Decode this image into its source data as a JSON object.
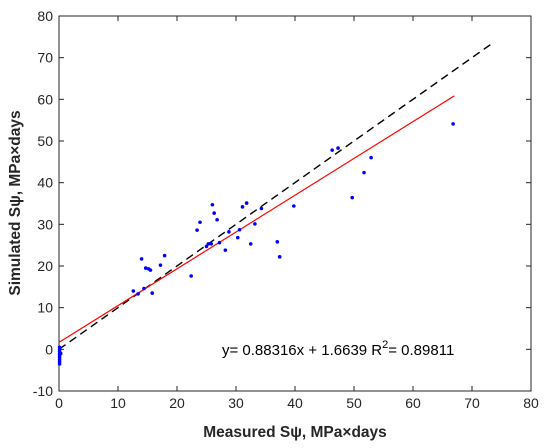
{
  "chart_data": {
    "type": "scatter",
    "title": "",
    "xlabel": "Measured Sψ, MPa×days",
    "ylabel": "Simulated Sψ, MPa×days",
    "xlim": [
      0,
      80
    ],
    "ylim": [
      -10,
      80
    ],
    "x_ticks": [
      0,
      10,
      20,
      30,
      40,
      50,
      60,
      70,
      80
    ],
    "y_ticks": [
      -10,
      0,
      10,
      20,
      30,
      40,
      50,
      60,
      70,
      80
    ],
    "grid": false,
    "legend": "none",
    "points": [
      {
        "x": 0.1,
        "y": 0.5
      },
      {
        "x": 0.1,
        "y": 0.0
      },
      {
        "x": 0.1,
        "y": -0.5
      },
      {
        "x": 0.1,
        "y": -1.0
      },
      {
        "x": 0.1,
        "y": -1.5
      },
      {
        "x": 0.1,
        "y": -2.0
      },
      {
        "x": 0.1,
        "y": -2.5
      },
      {
        "x": 0.1,
        "y": -3.0
      },
      {
        "x": 0.1,
        "y": -3.5
      },
      {
        "x": 0.3,
        "y": -1.0
      },
      {
        "x": 12.6,
        "y": 14.0
      },
      {
        "x": 13.4,
        "y": 13.3
      },
      {
        "x": 14.0,
        "y": 21.7
      },
      {
        "x": 14.4,
        "y": 14.6
      },
      {
        "x": 14.7,
        "y": 19.5
      },
      {
        "x": 15.2,
        "y": 19.3
      },
      {
        "x": 15.5,
        "y": 19.0
      },
      {
        "x": 15.8,
        "y": 13.5
      },
      {
        "x": 17.2,
        "y": 20.2
      },
      {
        "x": 17.9,
        "y": 22.5
      },
      {
        "x": 22.4,
        "y": 17.6
      },
      {
        "x": 23.4,
        "y": 28.6
      },
      {
        "x": 23.9,
        "y": 30.5
      },
      {
        "x": 25.0,
        "y": 24.7
      },
      {
        "x": 25.3,
        "y": 25.3
      },
      {
        "x": 25.8,
        "y": 25.3
      },
      {
        "x": 26.0,
        "y": 34.7
      },
      {
        "x": 26.3,
        "y": 32.7
      },
      {
        "x": 26.8,
        "y": 31.1
      },
      {
        "x": 27.2,
        "y": 25.6
      },
      {
        "x": 28.2,
        "y": 23.8
      },
      {
        "x": 28.8,
        "y": 28.2
      },
      {
        "x": 30.3,
        "y": 26.8
      },
      {
        "x": 30.6,
        "y": 28.7
      },
      {
        "x": 31.1,
        "y": 34.2
      },
      {
        "x": 31.8,
        "y": 35.1
      },
      {
        "x": 32.5,
        "y": 25.3
      },
      {
        "x": 33.2,
        "y": 30.1
      },
      {
        "x": 34.3,
        "y": 33.8
      },
      {
        "x": 37.0,
        "y": 25.8
      },
      {
        "x": 37.4,
        "y": 22.2
      },
      {
        "x": 39.8,
        "y": 34.4
      },
      {
        "x": 46.3,
        "y": 47.8
      },
      {
        "x": 47.3,
        "y": 48.3
      },
      {
        "x": 49.7,
        "y": 36.4
      },
      {
        "x": 51.7,
        "y": 42.4
      },
      {
        "x": 52.9,
        "y": 46.0
      },
      {
        "x": 66.8,
        "y": 54.1
      }
    ],
    "identity_line": {
      "x": [
        0,
        73.5
      ],
      "y": [
        0,
        73.5
      ]
    },
    "fit_line": {
      "slope": 0.88316,
      "intercept": 1.6639,
      "x": [
        0,
        67
      ]
    },
    "colors": {
      "points": "#0000ff",
      "fit": "#ff0000",
      "identity": "#000000"
    },
    "annotation": "y= 0.88316x + 1.6639  R",
    "annotation_sup": "2",
    "annotation_tail": "= 0.89811"
  }
}
